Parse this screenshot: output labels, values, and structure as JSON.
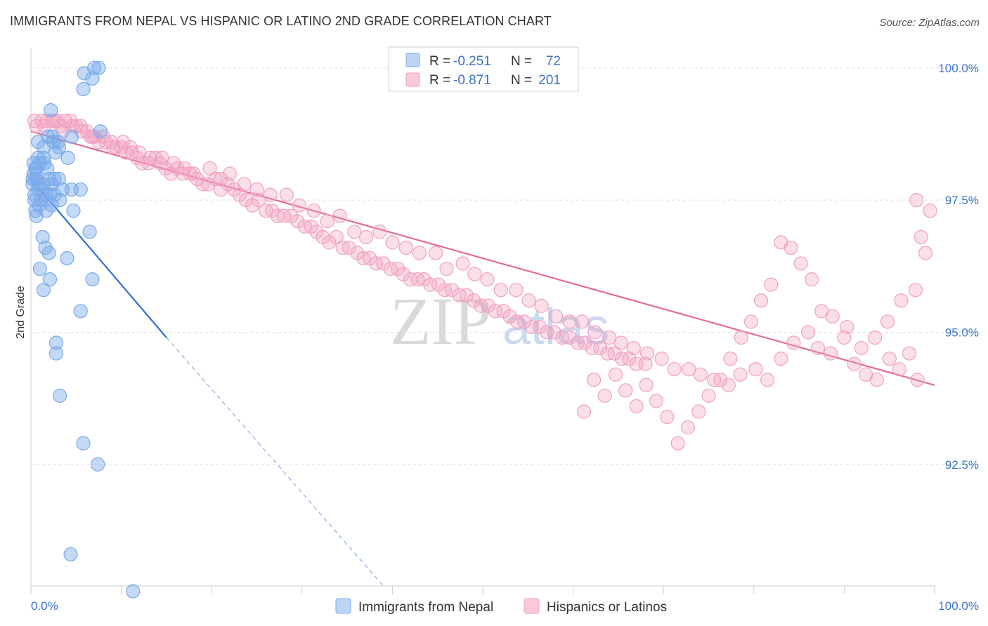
{
  "title": "IMMIGRANTS FROM NEPAL VS HISPANIC OR LATINO 2ND GRADE CORRELATION CHART",
  "source": "Source: ZipAtlas.com",
  "watermark": {
    "zip": "ZIP",
    "atlas": "atlas"
  },
  "chart_data": {
    "type": "scatter",
    "ylabel": "2nd Grade",
    "x_tick_labels": [
      "0.0%",
      "100.0%"
    ],
    "y_tick_labels": [
      "100.0%",
      "97.5%",
      "95.0%",
      "92.5%"
    ],
    "y_tick_values": [
      100.0,
      97.5,
      95.0,
      92.5
    ],
    "xlim": [
      0,
      100
    ],
    "ylim": [
      90.2,
      100.25
    ],
    "grid": "horizontal dashed",
    "legend_position": "top-center",
    "stats": [
      {
        "r_label": "R =",
        "r": "-0.251",
        "n_label": "N =",
        "n": "72"
      },
      {
        "r_label": "R =",
        "r": "-0.871",
        "n_label": "N =",
        "n": "201"
      }
    ],
    "series": [
      {
        "name": "Immigrants from Nepal",
        "color": "#7aaaea",
        "line_color": "#2f72d6",
        "trend": {
          "x": [
            0,
            15
          ],
          "y": [
            97.9,
            94.9
          ]
        },
        "trend_dashed": {
          "x": [
            15,
            39
          ],
          "y": [
            94.9,
            90.2
          ]
        },
        "points": [
          [
            7,
            100
          ],
          [
            7.5,
            100
          ],
          [
            6.8,
            99.8
          ],
          [
            5.9,
            99.9
          ],
          [
            5.8,
            99.6
          ],
          [
            2.2,
            99.2
          ],
          [
            4.5,
            98.7
          ],
          [
            7.7,
            98.8
          ],
          [
            1.9,
            98.7
          ],
          [
            0.8,
            98.6
          ],
          [
            1.4,
            98.5
          ],
          [
            2.5,
            98.6
          ],
          [
            2.7,
            98.4
          ],
          [
            1.4,
            98.3
          ],
          [
            3.1,
            98.5
          ],
          [
            4.1,
            98.3
          ],
          [
            0.3,
            98.2
          ],
          [
            0.6,
            98.1
          ],
          [
            1.5,
            98.2
          ],
          [
            0.3,
            98
          ],
          [
            0.7,
            97.9
          ],
          [
            2,
            97.9
          ],
          [
            3.1,
            97.9
          ],
          [
            0.2,
            97.8
          ],
          [
            1.4,
            97.8
          ],
          [
            0.8,
            97.7
          ],
          [
            2.3,
            97.8
          ],
          [
            4.5,
            97.7
          ],
          [
            5.5,
            97.7
          ],
          [
            0.4,
            97.5
          ],
          [
            1.6,
            97.5
          ],
          [
            2.6,
            97.6
          ],
          [
            3.2,
            97.5
          ],
          [
            0.9,
            97.4
          ],
          [
            2.3,
            97.4
          ],
          [
            1.7,
            97.3
          ],
          [
            0.6,
            97.2
          ],
          [
            4.7,
            97.3
          ],
          [
            1.3,
            96.8
          ],
          [
            1.6,
            96.6
          ],
          [
            2,
            96.5
          ],
          [
            4,
            96.4
          ],
          [
            1,
            96.2
          ],
          [
            2.1,
            96
          ],
          [
            6.8,
            96
          ],
          [
            1.4,
            95.8
          ],
          [
            5.5,
            95.4
          ],
          [
            2.8,
            94.8
          ],
          [
            2.8,
            94.6
          ],
          [
            3.2,
            93.8
          ],
          [
            5.8,
            92.9
          ],
          [
            7.4,
            92.5
          ],
          [
            4.4,
            90.8
          ],
          [
            11.3,
            90.1
          ],
          [
            0.5,
            98.1
          ],
          [
            0.9,
            97.8
          ],
          [
            1.8,
            98.1
          ],
          [
            0.4,
            97.6
          ],
          [
            1.1,
            97.5
          ],
          [
            2.4,
            98.7
          ],
          [
            3,
            98.6
          ],
          [
            0.5,
            97.3
          ],
          [
            1.2,
            97.7
          ],
          [
            6.5,
            96.9
          ],
          [
            2.6,
            97.9
          ],
          [
            0.2,
            97.9
          ],
          [
            1.7,
            97.6
          ],
          [
            3.5,
            97.7
          ],
          [
            1,
            98.2
          ],
          [
            0.8,
            98.3
          ],
          [
            2.1,
            97.6
          ],
          [
            0.5,
            97.9
          ]
        ]
      },
      {
        "name": "Hispanics or Latinos",
        "color": "#f1a0bf",
        "line_color": "#e46a98",
        "trend": {
          "x": [
            0,
            100
          ],
          "y": [
            98.8,
            94.0
          ]
        },
        "points": [
          [
            0.6,
            98.9
          ],
          [
            1.2,
            99
          ],
          [
            1.8,
            99
          ],
          [
            2.3,
            99
          ],
          [
            2.9,
            99
          ],
          [
            3.3,
            98.9
          ],
          [
            3.8,
            99
          ],
          [
            4.4,
            99
          ],
          [
            5,
            98.9
          ],
          [
            5.6,
            98.8
          ],
          [
            6.2,
            98.8
          ],
          [
            6.8,
            98.7
          ],
          [
            7.1,
            98.7
          ],
          [
            7.5,
            98.6
          ],
          [
            8.3,
            98.6
          ],
          [
            8.9,
            98.6
          ],
          [
            9.4,
            98.5
          ],
          [
            10.2,
            98.6
          ],
          [
            10.5,
            98.4
          ],
          [
            11.2,
            98.4
          ],
          [
            11.7,
            98.3
          ],
          [
            12.3,
            98.2
          ],
          [
            13,
            98.2
          ],
          [
            13.8,
            98.3
          ],
          [
            14.3,
            98.2
          ],
          [
            14.9,
            98.1
          ],
          [
            15.5,
            98
          ],
          [
            16.2,
            98.1
          ],
          [
            16.8,
            98
          ],
          [
            17.6,
            98
          ],
          [
            18.4,
            97.9
          ],
          [
            19,
            97.8
          ],
          [
            19.6,
            97.8
          ],
          [
            20.4,
            97.9
          ],
          [
            21,
            97.7
          ],
          [
            21.8,
            97.8
          ],
          [
            22.5,
            97.7
          ],
          [
            23.1,
            97.6
          ],
          [
            23.8,
            97.5
          ],
          [
            24.5,
            97.4
          ],
          [
            25.2,
            97.5
          ],
          [
            26,
            97.3
          ],
          [
            26.7,
            97.3
          ],
          [
            27.3,
            97.2
          ],
          [
            28,
            97.2
          ],
          [
            28.8,
            97.2
          ],
          [
            29.5,
            97.1
          ],
          [
            30.3,
            97
          ],
          [
            31,
            97
          ],
          [
            31.6,
            96.9
          ],
          [
            32.3,
            96.8
          ],
          [
            33,
            96.7
          ],
          [
            33.8,
            96.8
          ],
          [
            34.5,
            96.6
          ],
          [
            35.2,
            96.6
          ],
          [
            36.1,
            96.5
          ],
          [
            36.8,
            96.4
          ],
          [
            37.5,
            96.4
          ],
          [
            38.2,
            96.3
          ],
          [
            39,
            96.3
          ],
          [
            39.8,
            96.2
          ],
          [
            40.6,
            96.2
          ],
          [
            41.2,
            96.1
          ],
          [
            42,
            96
          ],
          [
            42.8,
            96
          ],
          [
            43.5,
            96
          ],
          [
            44.2,
            95.9
          ],
          [
            45.1,
            95.9
          ],
          [
            45.8,
            95.8
          ],
          [
            46.6,
            95.8
          ],
          [
            47.4,
            95.7
          ],
          [
            48.2,
            95.7
          ],
          [
            49,
            95.6
          ],
          [
            49.8,
            95.5
          ],
          [
            50.6,
            95.5
          ],
          [
            51.4,
            95.4
          ],
          [
            52.3,
            95.4
          ],
          [
            53,
            95.3
          ],
          [
            53.8,
            95.2
          ],
          [
            54.6,
            95.2
          ],
          [
            55.4,
            95.1
          ],
          [
            56.3,
            95.1
          ],
          [
            57.1,
            95
          ],
          [
            57.9,
            95
          ],
          [
            58.8,
            94.9
          ],
          [
            59.6,
            94.9
          ],
          [
            60.5,
            94.8
          ],
          [
            61.3,
            94.8
          ],
          [
            62.1,
            94.7
          ],
          [
            63,
            94.7
          ],
          [
            63.8,
            94.6
          ],
          [
            64.6,
            94.6
          ],
          [
            65.4,
            94.5
          ],
          [
            66.2,
            94.5
          ],
          [
            67,
            94.4
          ],
          [
            68,
            94.4
          ],
          [
            0.4,
            99
          ],
          [
            1.5,
            98.9
          ],
          [
            2.6,
            99
          ],
          [
            3.5,
            98.8
          ],
          [
            4.6,
            98.9
          ],
          [
            5.5,
            98.9
          ],
          [
            6.6,
            98.7
          ],
          [
            8,
            98.7
          ],
          [
            9.1,
            98.5
          ],
          [
            10,
            98.5
          ],
          [
            11,
            98.5
          ],
          [
            12,
            98.4
          ],
          [
            13.2,
            98.3
          ],
          [
            14.5,
            98.3
          ],
          [
            15.8,
            98.2
          ],
          [
            17,
            98.1
          ],
          [
            18,
            98
          ],
          [
            19.8,
            98.1
          ],
          [
            21,
            97.9
          ],
          [
            22,
            98
          ],
          [
            23.6,
            97.8
          ],
          [
            25,
            97.7
          ],
          [
            26.5,
            97.6
          ],
          [
            28.3,
            97.6
          ],
          [
            29.7,
            97.4
          ],
          [
            31.3,
            97.3
          ],
          [
            32.8,
            97.1
          ],
          [
            34.2,
            97.2
          ],
          [
            35.8,
            96.9
          ],
          [
            37.1,
            96.8
          ],
          [
            38.6,
            96.9
          ],
          [
            40,
            96.7
          ],
          [
            41.5,
            96.6
          ],
          [
            43,
            96.5
          ],
          [
            44.8,
            96.5
          ],
          [
            46,
            96.2
          ],
          [
            47.8,
            96.3
          ],
          [
            49.1,
            96.1
          ],
          [
            50.5,
            96
          ],
          [
            52,
            95.8
          ],
          [
            53.7,
            95.8
          ],
          [
            55.1,
            95.6
          ],
          [
            56.5,
            95.5
          ],
          [
            58.1,
            95.3
          ],
          [
            59.6,
            95.2
          ],
          [
            61,
            95.2
          ],
          [
            62.4,
            95
          ],
          [
            64,
            94.9
          ],
          [
            65.3,
            94.8
          ],
          [
            66.7,
            94.7
          ],
          [
            68.2,
            94.6
          ],
          [
            69.8,
            94.5
          ],
          [
            71.2,
            94.3
          ],
          [
            72.8,
            94.3
          ],
          [
            74.1,
            94.2
          ],
          [
            75.6,
            94.1
          ],
          [
            77.2,
            94
          ],
          [
            78.5,
            94.2
          ],
          [
            80.2,
            94.3
          ],
          [
            81.5,
            94.1
          ],
          [
            83,
            94.5
          ],
          [
            84.4,
            94.8
          ],
          [
            86,
            95
          ],
          [
            87.1,
            94.7
          ],
          [
            88.5,
            94.6
          ],
          [
            90,
            94.9
          ],
          [
            91.1,
            94.4
          ],
          [
            92.4,
            94.2
          ],
          [
            93.6,
            94.1
          ],
          [
            95,
            94.5
          ],
          [
            96.1,
            94.3
          ],
          [
            97.2,
            94.6
          ],
          [
            98.1,
            94.1
          ],
          [
            99,
            96.5
          ],
          [
            99.5,
            97.3
          ],
          [
            98,
            97.5
          ],
          [
            98.5,
            96.8
          ],
          [
            97.9,
            95.8
          ],
          [
            96.3,
            95.6
          ],
          [
            94.8,
            95.2
          ],
          [
            93.4,
            94.9
          ],
          [
            91.9,
            94.7
          ],
          [
            90.3,
            95.1
          ],
          [
            88.7,
            95.3
          ],
          [
            87.5,
            95.4
          ],
          [
            86.4,
            96
          ],
          [
            85.2,
            96.3
          ],
          [
            84.1,
            96.6
          ],
          [
            83,
            96.7
          ],
          [
            81.9,
            95.9
          ],
          [
            80.8,
            95.6
          ],
          [
            79.7,
            95.2
          ],
          [
            78.6,
            94.9
          ],
          [
            77.4,
            94.5
          ],
          [
            76.3,
            94.1
          ],
          [
            75,
            93.8
          ],
          [
            73.9,
            93.5
          ],
          [
            72.7,
            93.2
          ],
          [
            71.6,
            92.9
          ],
          [
            70.4,
            93.4
          ],
          [
            69.2,
            93.7
          ],
          [
            68.1,
            94
          ],
          [
            67,
            93.6
          ],
          [
            65.8,
            93.9
          ],
          [
            64.7,
            94.2
          ],
          [
            63.5,
            93.8
          ],
          [
            62.3,
            94.1
          ],
          [
            61.2,
            93.5
          ]
        ]
      }
    ]
  }
}
